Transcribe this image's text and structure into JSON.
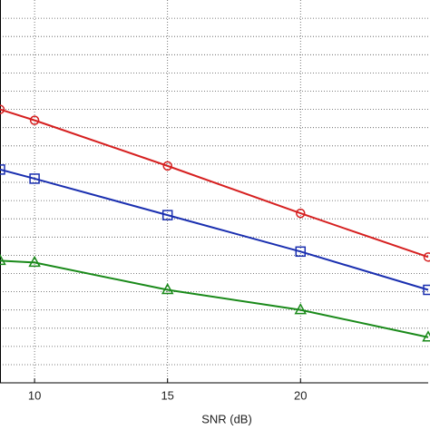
{
  "chart_data": {
    "type": "line",
    "x_label": "SNR (dB)",
    "x": [
      8.7,
      10,
      15,
      20,
      24.8
    ],
    "xlim": [
      8.7,
      24.8
    ],
    "xticks": [
      10,
      15,
      20
    ],
    "ylim": [
      0,
      21
    ],
    "grid": true,
    "series": [
      {
        "color": "#d62020",
        "marker": "circle",
        "values": [
          15.0,
          14.4,
          11.9,
          9.3,
          6.9
        ]
      },
      {
        "color": "#1a2fb0",
        "marker": "square",
        "values": [
          11.7,
          11.2,
          9.2,
          7.2,
          5.1
        ]
      },
      {
        "color": "#1a8a1a",
        "marker": "triangle",
        "values": [
          6.7,
          6.6,
          5.1,
          4.0,
          2.5
        ]
      }
    ]
  }
}
